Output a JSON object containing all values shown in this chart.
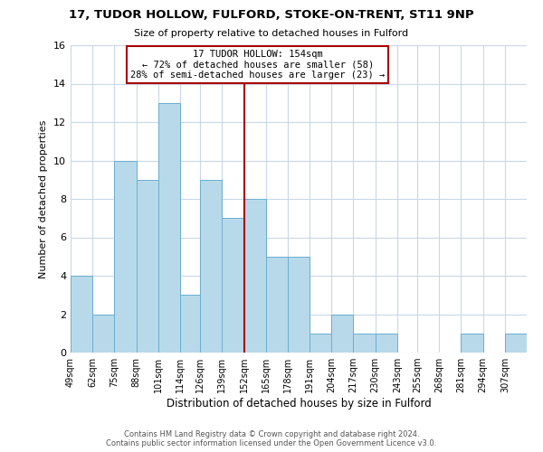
{
  "title1": "17, TUDOR HOLLOW, FULFORD, STOKE-ON-TRENT, ST11 9NP",
  "title2": "Size of property relative to detached houses in Fulford",
  "xlabel": "Distribution of detached houses by size in Fulford",
  "ylabel": "Number of detached properties",
  "bar_labels": [
    "49sqm",
    "62sqm",
    "75sqm",
    "88sqm",
    "101sqm",
    "114sqm",
    "126sqm",
    "139sqm",
    "152sqm",
    "165sqm",
    "178sqm",
    "191sqm",
    "204sqm",
    "217sqm",
    "230sqm",
    "243sqm",
    "255sqm",
    "268sqm",
    "281sqm",
    "294sqm",
    "307sqm"
  ],
  "bar_values": [
    4,
    2,
    10,
    9,
    13,
    3,
    9,
    7,
    8,
    5,
    5,
    1,
    2,
    1,
    1,
    0,
    0,
    0,
    1,
    0,
    1
  ],
  "bar_edges": [
    49,
    62,
    75,
    88,
    101,
    114,
    126,
    139,
    152,
    165,
    178,
    191,
    204,
    217,
    230,
    243,
    255,
    268,
    281,
    294,
    307,
    320
  ],
  "bar_color": "#b8d9ea",
  "bar_edgecolor": "#6aaed0",
  "reference_line_x": 152,
  "reference_line_color": "#aa0000",
  "annotation_line1": "17 TUDOR HOLLOW: 154sqm",
  "annotation_line2": "← 72% of detached houses are smaller (58)",
  "annotation_line3": "28% of semi-detached houses are larger (23) →",
  "annotation_box_edgecolor": "#aa0000",
  "ylim": [
    0,
    16
  ],
  "yticks": [
    0,
    2,
    4,
    6,
    8,
    10,
    12,
    14,
    16
  ],
  "background_color": "#ffffff",
  "grid_color": "#c8d8e8",
  "footer_line1": "Contains HM Land Registry data © Crown copyright and database right 2024.",
  "footer_line2": "Contains public sector information licensed under the Open Government Licence v3.0."
}
